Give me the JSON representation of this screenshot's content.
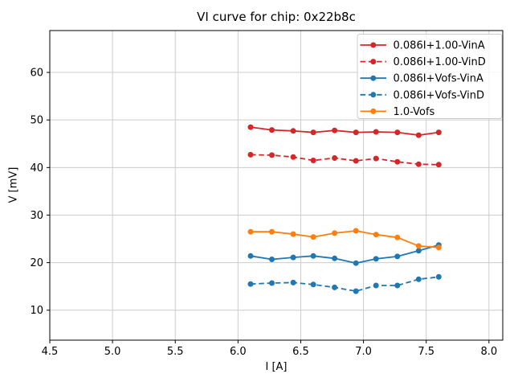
{
  "chart_data": {
    "type": "line",
    "title": "VI curve for chip: 0x22b8c",
    "xlabel": "I [A]",
    "ylabel": "V [mV]",
    "xlim": [
      4.5,
      8.11
    ],
    "ylim": [
      3.7,
      68.8
    ],
    "xticks": [
      4.5,
      5.0,
      5.5,
      6.0,
      6.5,
      7.0,
      7.5,
      8.0
    ],
    "yticks": [
      10,
      20,
      30,
      40,
      50,
      60
    ],
    "grid": true,
    "legend_position": "upper right",
    "x": [
      6.1,
      6.27,
      6.44,
      6.6,
      6.77,
      6.94,
      7.1,
      7.27,
      7.44,
      7.6
    ],
    "series": [
      {
        "name": "0.086I+1.00-VinA",
        "color": "#d62728",
        "style": "solid",
        "marker": "circle",
        "values": [
          48.5,
          47.9,
          47.7,
          47.4,
          47.8,
          47.4,
          47.5,
          47.4,
          46.8,
          47.4
        ]
      },
      {
        "name": "0.086I+1.00-VinD",
        "color": "#d62728",
        "style": "dashed",
        "marker": "circle",
        "values": [
          42.7,
          42.6,
          42.2,
          41.5,
          42.0,
          41.4,
          41.9,
          41.2,
          40.7,
          40.6
        ]
      },
      {
        "name": "0.086I+Vofs-VinA",
        "color": "#1f77b4",
        "style": "solid",
        "marker": "circle",
        "values": [
          21.4,
          20.7,
          21.1,
          21.4,
          20.9,
          19.9,
          20.8,
          21.3,
          22.5,
          23.7
        ]
      },
      {
        "name": "0.086I+Vofs-VinD",
        "color": "#1f77b4",
        "style": "dashed",
        "marker": "circle",
        "values": [
          15.5,
          15.7,
          15.8,
          15.4,
          14.8,
          14.0,
          15.2,
          15.2,
          16.5,
          17.0
        ]
      },
      {
        "name": "1.0-Vofs",
        "color": "#ff7f0e",
        "style": "solid",
        "marker": "circle",
        "values": [
          26.5,
          26.5,
          26.0,
          25.4,
          26.2,
          26.7,
          25.9,
          25.3,
          23.5,
          23.2
        ]
      }
    ],
    "colors": {
      "grid": "#cccccc",
      "axis": "#000000",
      "background": "#ffffff",
      "legend_border": "#cccccc"
    }
  }
}
